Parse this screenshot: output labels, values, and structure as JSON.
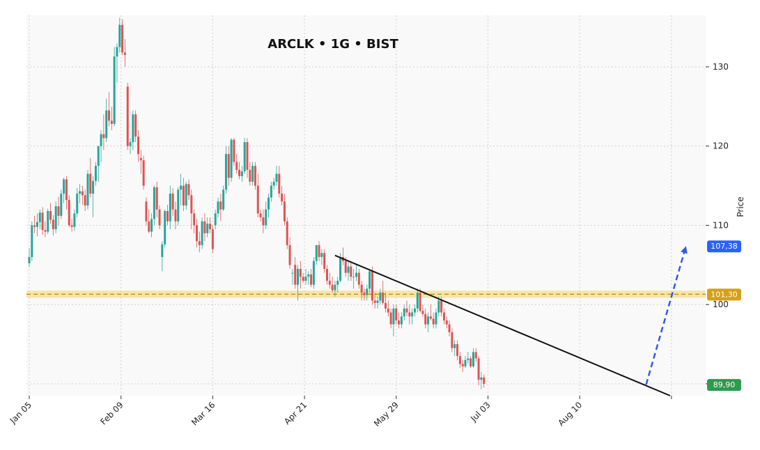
{
  "chart_data": {
    "type": "candlestick",
    "title": "ARCLK • 1G • BIST",
    "ylabel": "Price",
    "xlabel": "",
    "ylim": [
      88.5,
      136.5
    ],
    "y_ticks": [
      90,
      100,
      110,
      120,
      130
    ],
    "x_ticks": [
      "Jan 05",
      "Feb 09",
      "Mar 16",
      "Apr 21",
      "May 29",
      "Jul 03",
      "Aug 10",
      ""
    ],
    "grid": true,
    "colors": {
      "up": "#26a69a",
      "down": "#e05252",
      "trend": "#111111",
      "projection": "#2f5be0",
      "zone": "#f6d46a"
    },
    "support_zone": {
      "low": 100.85,
      "high": 101.75,
      "level": 101.3
    },
    "price_labels": [
      {
        "text": "107,38",
        "value": 107.38,
        "color": "#2962ff"
      },
      {
        "text": "101,30",
        "value": 101.3,
        "color": "#d4a017"
      },
      {
        "text": "89,90",
        "value": 89.9,
        "color": "#2e9a4f"
      }
    ],
    "trend_line": {
      "from": {
        "index": 115,
        "price": 106.2
      },
      "to": {
        "index": 241,
        "price": 88.5
      }
    },
    "projection": {
      "from": {
        "index": 232,
        "price": 89.9
      },
      "to": {
        "index": 247,
        "price": 107.38
      }
    },
    "candles": [
      [
        105.2,
        107.1,
        104.8,
        106.0
      ],
      [
        106.0,
        110.5,
        105.5,
        110.0
      ],
      [
        110.0,
        111.2,
        109.0,
        109.8
      ],
      [
        109.8,
        111.5,
        108.6,
        110.4
      ],
      [
        110.4,
        112.0,
        109.5,
        111.6
      ],
      [
        111.6,
        112.3,
        108.8,
        109.4
      ],
      [
        109.4,
        110.5,
        108.5,
        109.2
      ],
      [
        109.2,
        112.1,
        108.9,
        111.8
      ],
      [
        111.8,
        112.8,
        110.2,
        110.7
      ],
      [
        110.7,
        111.3,
        108.7,
        109.5
      ],
      [
        109.5,
        113.0,
        109.0,
        112.4
      ],
      [
        112.4,
        113.6,
        110.0,
        111.2
      ],
      [
        111.2,
        114.5,
        110.8,
        114.0
      ],
      [
        114.0,
        116.0,
        112.8,
        115.8
      ],
      [
        115.8,
        116.2,
        112.0,
        113.2
      ],
      [
        113.2,
        113.8,
        109.8,
        110.0
      ],
      [
        110.0,
        110.8,
        109.2,
        109.8
      ],
      [
        109.8,
        112.0,
        109.3,
        111.5
      ],
      [
        111.5,
        114.7,
        111.0,
        114.0
      ],
      [
        114.0,
        115.2,
        112.8,
        114.3
      ],
      [
        114.3,
        115.0,
        112.6,
        113.8
      ],
      [
        113.8,
        114.5,
        111.8,
        112.5
      ],
      [
        112.5,
        117.0,
        112.0,
        116.5
      ],
      [
        116.5,
        118.5,
        113.5,
        114.0
      ],
      [
        114.0,
        116.2,
        111.0,
        115.6
      ],
      [
        115.6,
        118.0,
        115.0,
        117.5
      ],
      [
        117.5,
        120.0,
        115.5,
        120.0
      ],
      [
        120.0,
        122.0,
        118.0,
        121.5
      ],
      [
        121.5,
        124.0,
        119.5,
        121.0
      ],
      [
        121.0,
        126.0,
        120.5,
        124.5
      ],
      [
        124.5,
        126.8,
        122.5,
        123.2
      ],
      [
        123.2,
        125.0,
        122.0,
        122.8
      ],
      [
        122.8,
        132.5,
        122.5,
        131.3
      ],
      [
        131.3,
        133.0,
        128.0,
        132.5
      ],
      [
        132.5,
        136.2,
        131.8,
        135.3
      ],
      [
        135.3,
        136.0,
        131.5,
        131.8
      ],
      [
        131.8,
        133.5,
        130.0,
        131.5
      ],
      [
        127.5,
        128.0,
        119.5,
        120.0
      ],
      [
        120.0,
        121.0,
        119.0,
        120.5
      ],
      [
        120.5,
        124.5,
        119.5,
        124.0
      ],
      [
        124.0,
        124.5,
        120.5,
        121.2
      ],
      [
        121.2,
        122.0,
        118.0,
        119.0
      ],
      [
        118.5,
        119.5,
        116.5,
        118.2
      ],
      [
        118.2,
        118.8,
        114.5,
        115.0
      ],
      [
        113.0,
        113.5,
        110.0,
        110.5
      ],
      [
        110.5,
        112.0,
        109.0,
        109.2
      ],
      [
        109.2,
        111.5,
        108.5,
        110.8
      ],
      [
        110.8,
        115.0,
        110.0,
        114.8
      ],
      [
        114.8,
        115.5,
        111.0,
        112.0
      ],
      [
        112.0,
        112.5,
        109.5,
        110.0
      ],
      [
        106.0,
        108.0,
        104.2,
        107.6
      ],
      [
        107.6,
        112.0,
        107.2,
        111.8
      ],
      [
        111.8,
        112.6,
        110.0,
        110.5
      ],
      [
        110.5,
        115.0,
        109.5,
        114.0
      ],
      [
        114.0,
        114.7,
        111.2,
        112.0
      ],
      [
        112.0,
        113.0,
        109.5,
        110.5
      ],
      [
        110.5,
        114.8,
        110.0,
        114.5
      ],
      [
        114.5,
        116.5,
        112.5,
        115.0
      ],
      [
        115.0,
        116.0,
        111.8,
        112.5
      ],
      [
        112.5,
        115.5,
        112.0,
        115.2
      ],
      [
        115.2,
        115.8,
        113.2,
        113.8
      ],
      [
        113.8,
        114.5,
        109.5,
        111.5
      ],
      [
        111.5,
        112.0,
        109.0,
        110.0
      ],
      [
        110.0,
        110.8,
        107.2,
        108.0
      ],
      [
        108.0,
        109.2,
        106.6,
        107.5
      ],
      [
        107.5,
        111.0,
        107.0,
        110.5
      ],
      [
        110.5,
        111.5,
        108.0,
        109.0
      ],
      [
        109.0,
        111.0,
        108.5,
        110.2
      ],
      [
        110.2,
        111.0,
        109.0,
        109.5
      ],
      [
        109.5,
        110.0,
        106.5,
        107.0
      ],
      [
        110.0,
        112.0,
        109.5,
        111.5
      ],
      [
        111.5,
        113.5,
        111.0,
        113.0
      ],
      [
        113.0,
        114.0,
        110.5,
        112.0
      ],
      [
        112.0,
        115.0,
        111.8,
        114.5
      ],
      [
        114.5,
        120.0,
        114.0,
        119.0
      ],
      [
        119.0,
        120.0,
        115.0,
        116.0
      ],
      [
        116.0,
        121.0,
        115.5,
        120.8
      ],
      [
        120.8,
        121.0,
        117.5,
        118.0
      ],
      [
        118.0,
        119.0,
        116.5,
        117.0
      ],
      [
        117.0,
        118.0,
        115.8,
        116.2
      ],
      [
        116.2,
        117.5,
        115.5,
        116.8
      ],
      [
        116.8,
        121.0,
        116.5,
        120.5
      ],
      [
        120.5,
        121.0,
        116.0,
        117.0
      ],
      [
        117.0,
        118.0,
        115.0,
        115.5
      ],
      [
        115.5,
        118.0,
        115.0,
        117.5
      ],
      [
        117.5,
        118.0,
        114.5,
        115.0
      ],
      [
        115.0,
        116.5,
        111.0,
        111.5
      ],
      [
        111.5,
        112.0,
        110.5,
        111.0
      ],
      [
        111.0,
        112.0,
        109.0,
        110.0
      ],
      [
        110.0,
        113.0,
        109.5,
        112.0
      ],
      [
        112.0,
        114.0,
        111.0,
        113.5
      ],
      [
        113.5,
        115.5,
        113.0,
        115.0
      ],
      [
        115.0,
        116.0,
        114.5,
        115.5
      ],
      [
        115.5,
        117.5,
        115.0,
        116.5
      ],
      [
        116.5,
        117.5,
        113.5,
        114.0
      ],
      [
        114.0,
        115.0,
        112.5,
        113.0
      ],
      [
        113.0,
        114.0,
        110.0,
        110.5
      ],
      [
        110.5,
        111.0,
        107.0,
        107.5
      ],
      [
        107.5,
        108.5,
        104.5,
        105.0
      ],
      [
        104.0,
        104.5,
        102.5,
        104.0
      ],
      [
        105.0,
        106.0,
        102.0,
        102.5
      ],
      [
        102.5,
        105.0,
        100.5,
        104.5
      ],
      [
        104.5,
        105.5,
        102.0,
        103.5
      ],
      [
        103.5,
        104.0,
        102.8,
        103.0
      ],
      [
        103.0,
        104.5,
        102.5,
        103.5
      ],
      [
        103.5,
        104.2,
        102.5,
        103.8
      ],
      [
        103.8,
        104.5,
        102.2,
        102.5
      ],
      [
        102.5,
        106.0,
        102.0,
        105.5
      ],
      [
        105.5,
        107.5,
        105.0,
        107.5
      ],
      [
        107.5,
        108.0,
        105.5,
        106.0
      ],
      [
        106.0,
        107.0,
        105.0,
        106.5
      ],
      [
        106.5,
        107.0,
        104.0,
        104.5
      ],
      [
        104.5,
        105.0,
        102.5,
        103.0
      ],
      [
        103.0,
        104.0,
        102.0,
        102.5
      ],
      [
        102.5,
        103.5,
        101.5,
        101.8
      ],
      [
        101.8,
        103.0,
        101.0,
        102.5
      ],
      [
        102.5,
        103.5,
        101.5,
        103.0
      ],
      [
        103.0,
        106.5,
        102.8,
        106.0
      ],
      [
        106.0,
        107.2,
        105.0,
        105.5
      ],
      [
        105.5,
        106.0,
        103.5,
        104.0
      ],
      [
        104.0,
        105.5,
        103.0,
        104.8
      ],
      [
        104.8,
        105.5,
        103.0,
        103.5
      ],
      [
        103.5,
        104.5,
        102.0,
        103.5
      ],
      [
        103.5,
        105.0,
        103.0,
        104.0
      ],
      [
        104.0,
        104.5,
        102.0,
        102.5
      ],
      [
        102.5,
        103.0,
        100.5,
        101.5
      ],
      [
        101.5,
        102.0,
        100.5,
        101.2
      ],
      [
        101.2,
        102.5,
        100.5,
        102.0
      ],
      [
        102.0,
        104.5,
        101.5,
        104.2
      ],
      [
        104.2,
        104.8,
        100.0,
        100.5
      ],
      [
        100.5,
        101.5,
        99.5,
        100.2
      ],
      [
        100.2,
        101.0,
        99.5,
        100.5
      ],
      [
        100.5,
        102.0,
        100.0,
        101.5
      ],
      [
        101.5,
        103.0,
        100.0,
        100.2
      ],
      [
        100.2,
        101.5,
        99.0,
        99.5
      ],
      [
        99.5,
        100.5,
        98.5,
        99.0
      ],
      [
        99.0,
        99.5,
        97.0,
        97.5
      ],
      [
        97.5,
        100.0,
        96.0,
        99.5
      ],
      [
        99.5,
        100.0,
        97.5,
        98.0
      ],
      [
        98.0,
        99.0,
        97.0,
        97.5
      ],
      [
        97.5,
        99.0,
        97.0,
        98.5
      ],
      [
        98.5,
        100.0,
        98.0,
        99.5
      ],
      [
        99.5,
        100.5,
        98.5,
        99.0
      ],
      [
        99.0,
        100.0,
        97.5,
        98.5
      ],
      [
        98.5,
        99.5,
        97.5,
        99.0
      ],
      [
        99.0,
        100.0,
        98.5,
        99.5
      ],
      [
        99.5,
        102.0,
        99.0,
        101.5
      ],
      [
        101.5,
        102.0,
        99.0,
        99.2
      ],
      [
        99.2,
        100.0,
        98.5,
        98.8
      ],
      [
        98.8,
        99.5,
        97.0,
        97.5
      ],
      [
        97.5,
        99.0,
        96.5,
        98.5
      ],
      [
        98.5,
        100.0,
        98.0,
        98.2
      ],
      [
        98.2,
        99.0,
        97.0,
        97.5
      ],
      [
        97.5,
        99.5,
        97.0,
        99.0
      ],
      [
        99.0,
        101.0,
        98.5,
        100.5
      ],
      [
        100.5,
        101.0,
        98.5,
        99.0
      ],
      [
        99.0,
        99.5,
        97.5,
        98.0
      ],
      [
        98.0,
        98.5,
        97.0,
        97.5
      ],
      [
        97.5,
        98.0,
        96.0,
        96.5
      ],
      [
        96.5,
        97.0,
        94.0,
        94.5
      ],
      [
        94.5,
        95.5,
        93.5,
        95.0
      ],
      [
        95.0,
        95.5,
        93.0,
        93.5
      ],
      [
        93.5,
        94.0,
        92.0,
        92.5
      ],
      [
        92.5,
        93.0,
        91.5,
        92.2
      ],
      [
        92.2,
        93.5,
        92.0,
        93.0
      ],
      [
        93.0,
        94.0,
        92.5,
        93.2
      ],
      [
        93.2,
        93.5,
        92.0,
        92.2
      ],
      [
        92.2,
        94.5,
        92.0,
        94.0
      ],
      [
        94.0,
        94.5,
        92.8,
        93.2
      ],
      [
        93.2,
        93.5,
        89.8,
        90.5
      ],
      [
        90.5,
        91.5,
        89.3,
        90.8
      ],
      [
        90.8,
        91.2,
        89.5,
        90.0
      ]
    ]
  }
}
